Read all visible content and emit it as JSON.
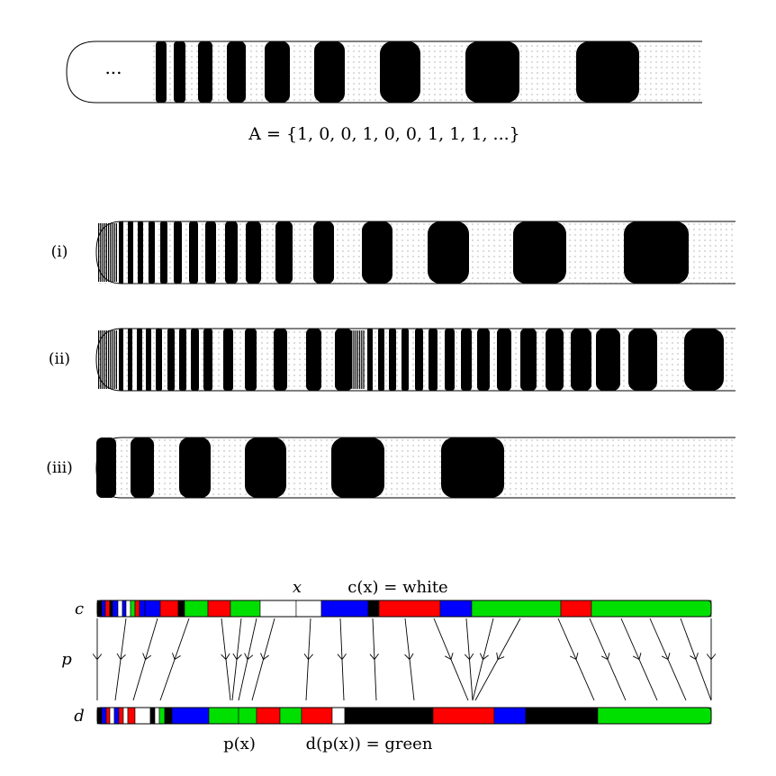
{
  "top_strip": {
    "ellipsis": "...",
    "caption": "A = {1, 0, 0, 1, 0, 0, 1, 1, 1, ...}"
  },
  "rows": [
    {
      "label": "(i)"
    },
    {
      "label": "(ii)"
    },
    {
      "label": "(iii)"
    }
  ],
  "bottom": {
    "c_label": "c",
    "p_label": "p",
    "d_label": "d",
    "x_label": "x",
    "cx_label": "c(x) = white",
    "px_label": "p(x)",
    "dpx_label": "d(p(x)) = green"
  },
  "colors": {
    "black": "#000000",
    "white": "#ffffff",
    "red": "#ff0000",
    "green": "#00e000",
    "blue": "#0000ff",
    "dots": "#666666"
  }
}
